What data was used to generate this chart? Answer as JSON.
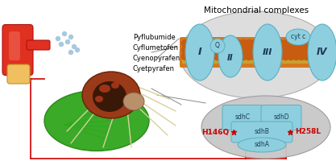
{
  "background_color": "#ffffff",
  "title": "Mitochondrial complexes",
  "title_fontsize": 7.5,
  "pesticides": [
    "Pyflubumide",
    "Cyflumetofen",
    "Cyenopyrafen",
    "Cyetpyrafen"
  ],
  "pesticide_fontsize": 6.0,
  "complex_color": "#8ecfdf",
  "complex_color_ec": "#5aafc0",
  "mito_bg": "#dcdcdc",
  "mito_ec": "#aaaaaa",
  "sdh_bg": "#c8c8c8",
  "sdh_ec": "#999999",
  "membrane_orange": "#d47820",
  "membrane_gold": "#c8a020",
  "H146Q": {
    "label": "H146Q",
    "color": "#cc0000",
    "fontsize": 6.5
  },
  "H258L": {
    "label": "H258L",
    "color": "#cc0000",
    "fontsize": 6.5
  },
  "star_color": "#cc0000",
  "red_line_color": "#cc0000",
  "red_line_lw": 1.2,
  "font_family": "DejaVu Sans"
}
